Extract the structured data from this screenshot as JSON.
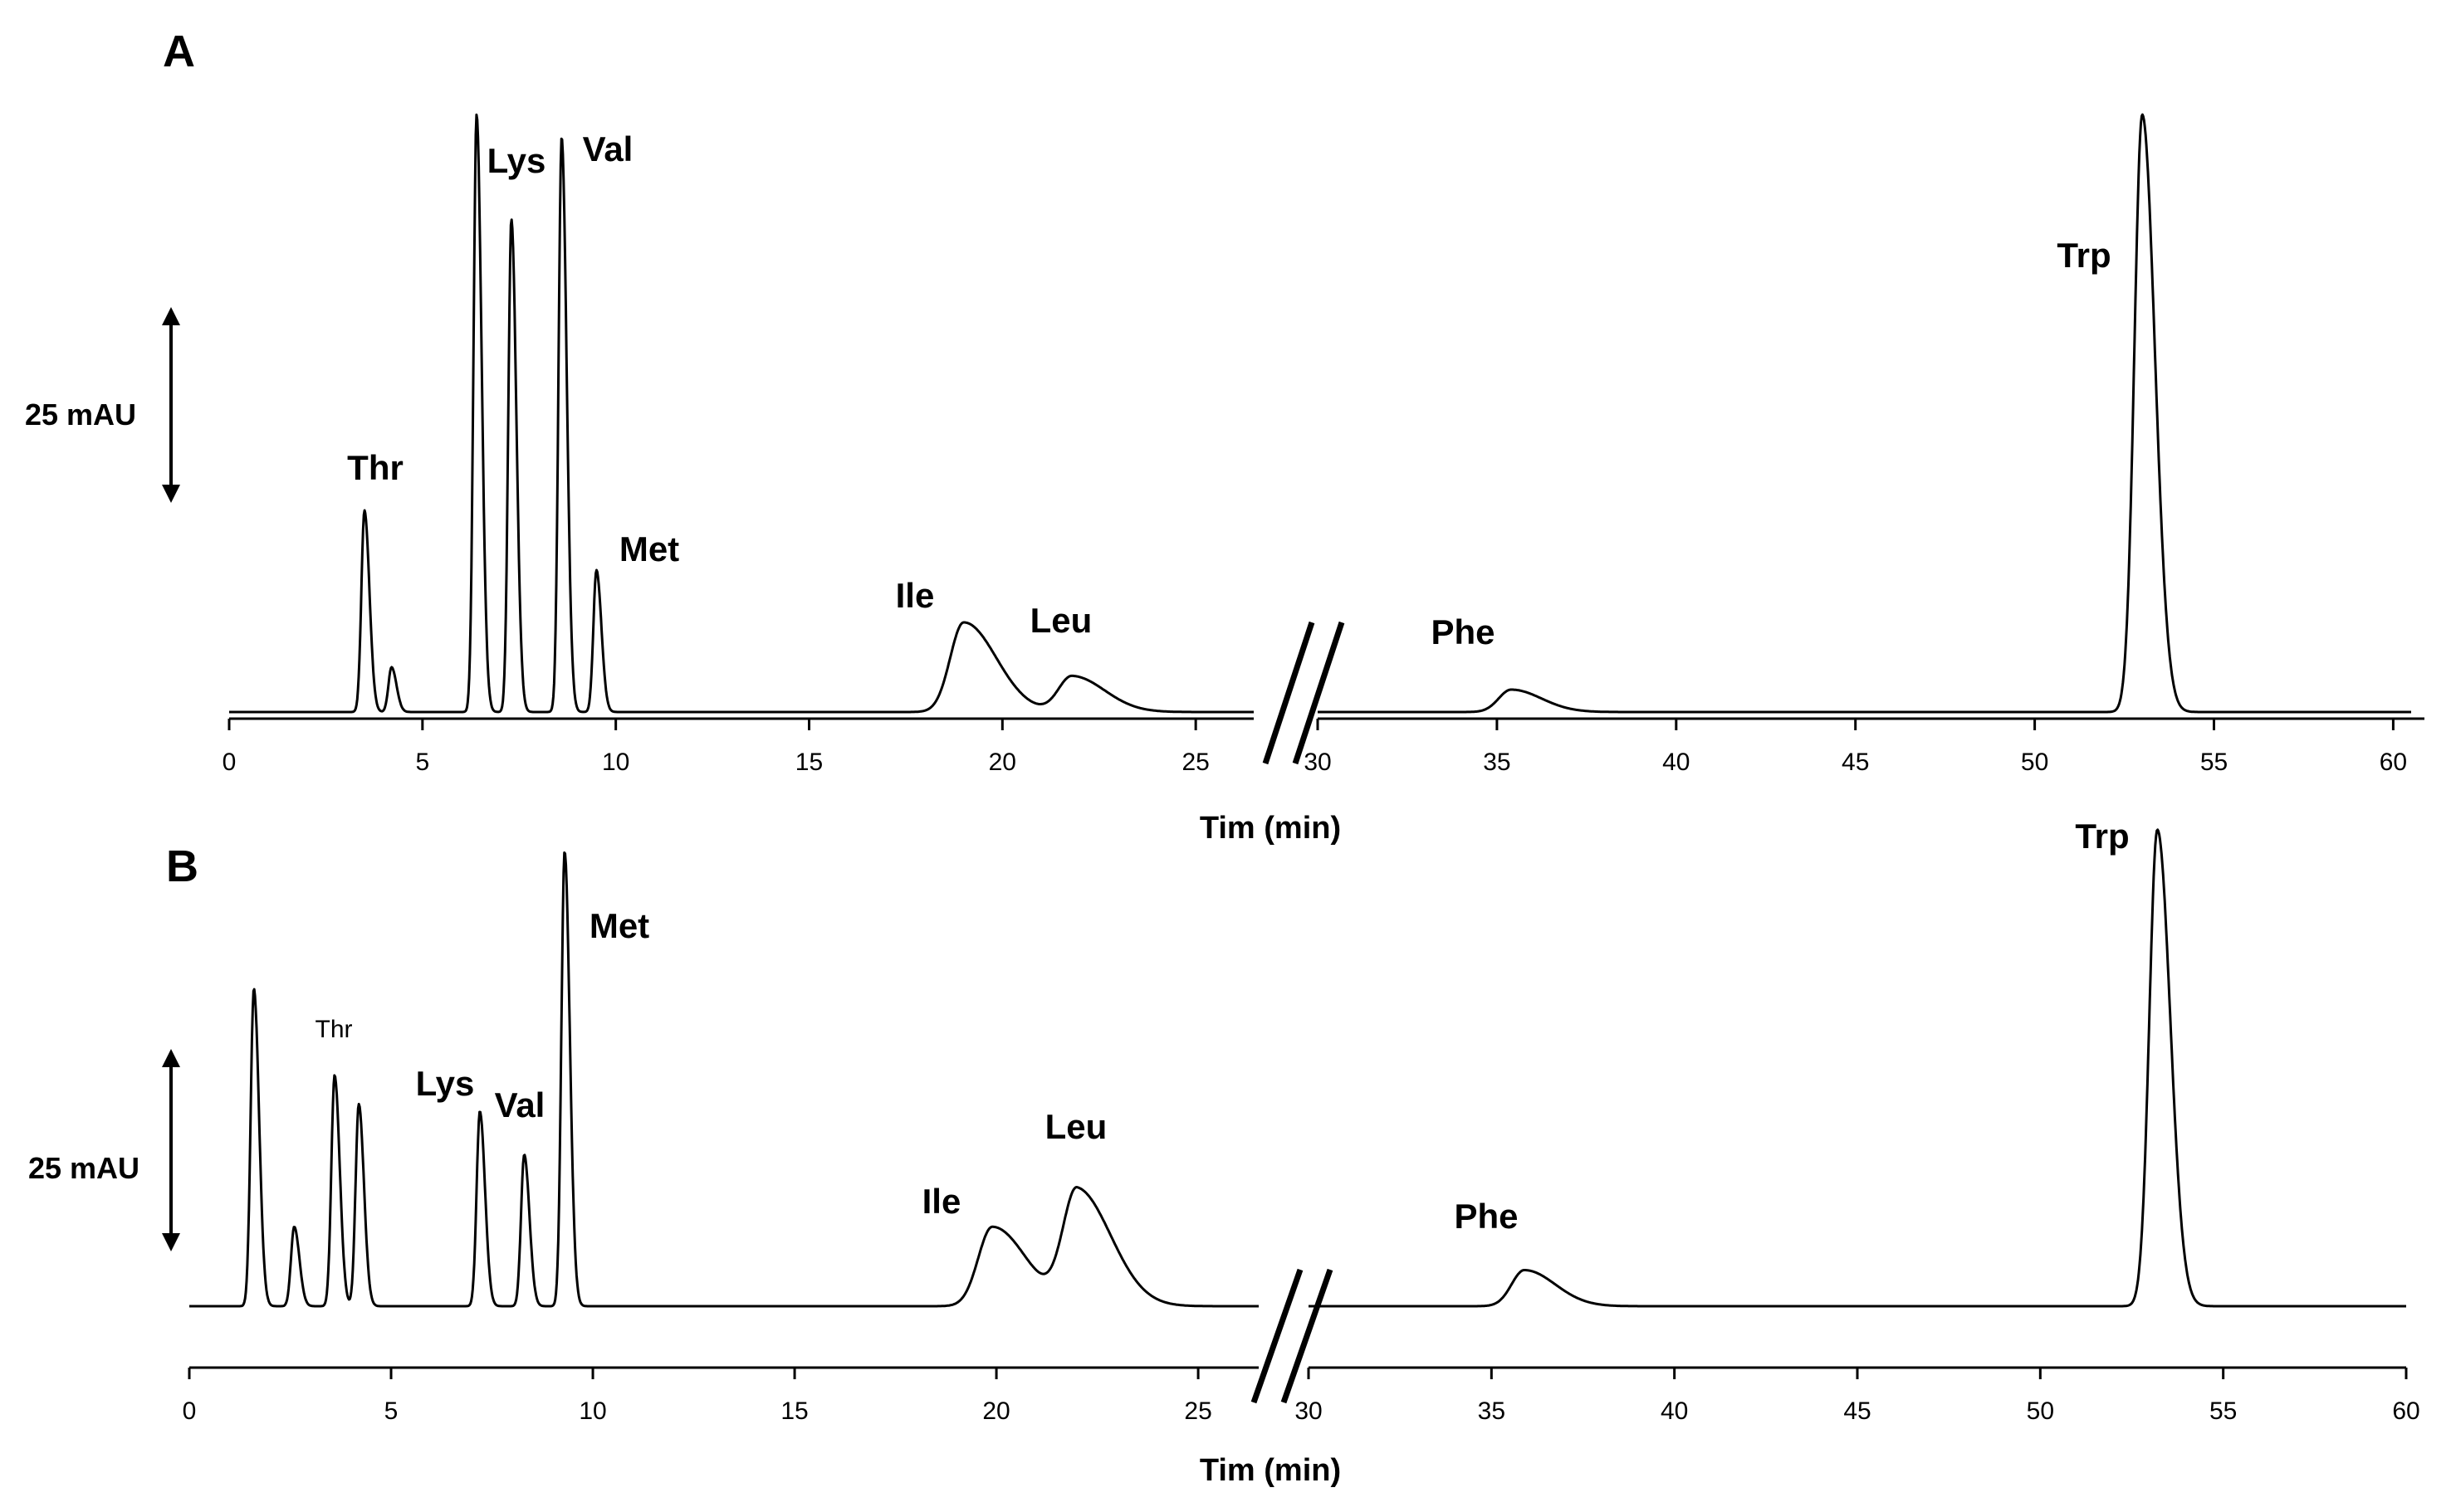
{
  "chart_data": [
    {
      "panel": "A",
      "type": "line",
      "xlabel": "Tim (min)",
      "scale_bar_label": "25 mAU",
      "segments": [
        {
          "xlim": [
            0,
            26.5
          ],
          "xticks": [
            0,
            5,
            10,
            15,
            20,
            25
          ]
        },
        {
          "xlim": [
            30,
            60.5
          ],
          "xticks": [
            30,
            35,
            40,
            45,
            50,
            55,
            60
          ]
        }
      ],
      "peaks": [
        {
          "name": "Thr",
          "rt": 3.5,
          "height": 27
        },
        {
          "name": "",
          "rt": 4.2,
          "height": 6
        },
        {
          "name": "",
          "rt": 6.4,
          "height": 80
        },
        {
          "name": "Lys",
          "rt": 7.3,
          "height": 66
        },
        {
          "name": "Val",
          "rt": 8.6,
          "height": 77
        },
        {
          "name": "Met",
          "rt": 9.5,
          "height": 19
        },
        {
          "name": "Ile",
          "rt": 19.0,
          "height": 12
        },
        {
          "name": "Leu",
          "rt": 21.8,
          "height": 4.8
        },
        {
          "name": "Phe",
          "rt": 35.4,
          "height": 3
        },
        {
          "name": "Trp",
          "rt": 53.0,
          "height": 80
        }
      ]
    },
    {
      "panel": "B",
      "type": "line",
      "xlabel": "Tim (min)",
      "scale_bar_label": "25 mAU",
      "segments": [
        {
          "xlim": [
            0,
            26.5
          ],
          "xticks": [
            0,
            5,
            10,
            15,
            20,
            25
          ]
        },
        {
          "xlim": [
            30,
            60
          ],
          "xticks": [
            30,
            35,
            40,
            45,
            50,
            55,
            60
          ]
        }
      ],
      "peaks": [
        {
          "name": "",
          "rt": 1.6,
          "height": 44
        },
        {
          "name": "",
          "rt": 2.6,
          "height": 11
        },
        {
          "name": "Thr",
          "rt": 3.6,
          "height": 32
        },
        {
          "name": "",
          "rt": 4.2,
          "height": 28
        },
        {
          "name": "Lys",
          "rt": 7.2,
          "height": 27
        },
        {
          "name": "Val",
          "rt": 8.3,
          "height": 21
        },
        {
          "name": "Met",
          "rt": 9.3,
          "height": 63
        },
        {
          "name": "Ile",
          "rt": 19.9,
          "height": 11
        },
        {
          "name": "Leu",
          "rt": 22.0,
          "height": 16
        },
        {
          "name": "Phe",
          "rt": 35.9,
          "height": 5
        },
        {
          "name": "Trp",
          "rt": 53.2,
          "height": 66
        }
      ]
    }
  ]
}
